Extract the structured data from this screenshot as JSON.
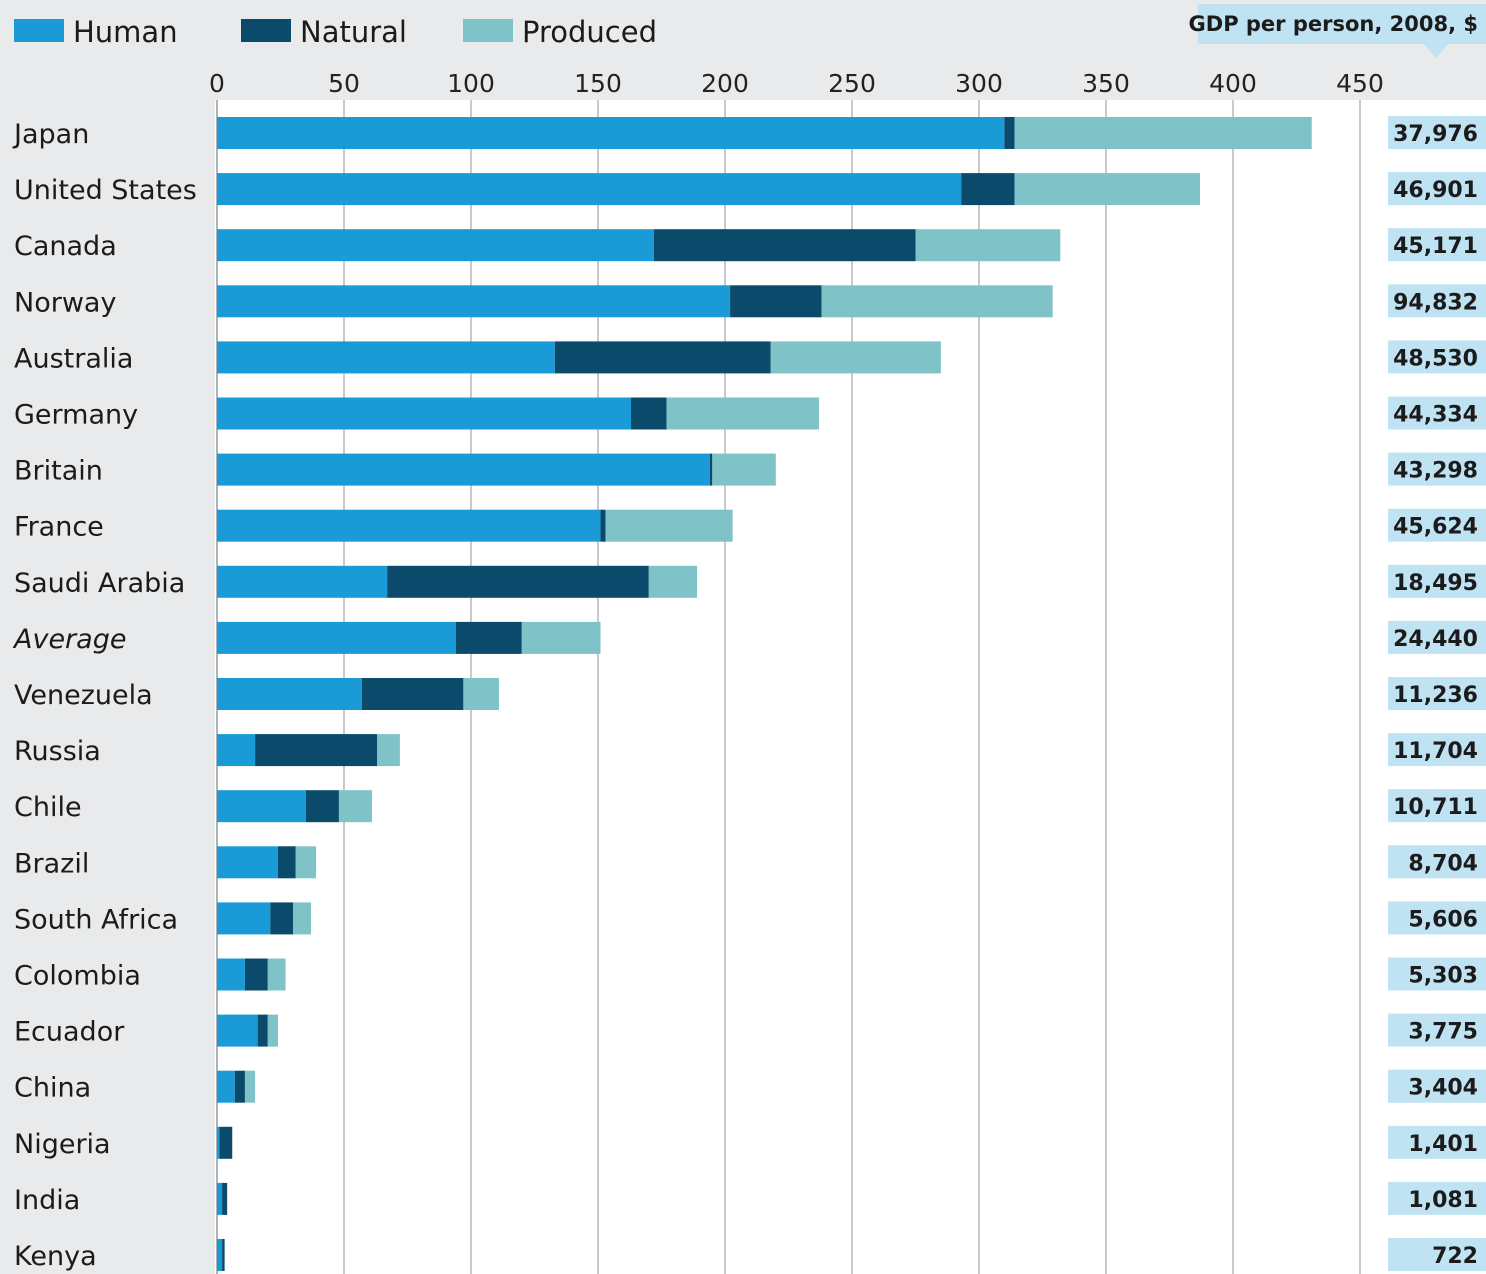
{
  "chart_data": {
    "type": "bar",
    "orientation": "horizontal",
    "stacked": true,
    "legend_placement": "top-left",
    "grid": true,
    "xlim": [
      0,
      450
    ],
    "xticks": [
      "0",
      "50",
      "100",
      "150",
      "200",
      "250",
      "300",
      "350",
      "400",
      "450"
    ],
    "categories": [
      "Japan",
      "United States",
      "Canada",
      "Norway",
      "Australia",
      "Germany",
      "Britain",
      "France",
      "Saudi Arabia",
      "Average",
      "Venezuela",
      "Russia",
      "Chile",
      "Brazil",
      "South Africa",
      "Colombia",
      "Ecuador",
      "China",
      "Nigeria",
      "India",
      "Kenya"
    ],
    "italic_categories": [
      "Average"
    ],
    "series": [
      {
        "name": "Human",
        "color": "#1a9bd7",
        "values": [
          310,
          293,
          172,
          202,
          133,
          163,
          194,
          151,
          67,
          94,
          57,
          15,
          35,
          24,
          21,
          11,
          16,
          7,
          1,
          2,
          2
        ]
      },
      {
        "name": "Natural",
        "color": "#0b4a6a",
        "values": [
          4,
          21,
          103,
          36,
          85,
          14,
          1,
          2,
          103,
          26,
          40,
          48,
          13,
          7,
          9,
          9,
          4,
          4,
          5,
          2,
          1
        ]
      },
      {
        "name": "Produced",
        "color": "#7fc3c8",
        "values": [
          117,
          73,
          57,
          91,
          67,
          60,
          25,
          50,
          19,
          31,
          14,
          9,
          13,
          8,
          7,
          7,
          4,
          4,
          0,
          0,
          0
        ]
      }
    ],
    "side_table": {
      "title": "GDP per person, 2008, $",
      "values": [
        "37,976",
        "46,901",
        "45,171",
        "94,832",
        "48,530",
        "44,334",
        "43,298",
        "45,624",
        "18,495",
        "24,440",
        "11,236",
        "11,704",
        "10,711",
        "8,704",
        "5,606",
        "5,303",
        "3,775",
        "3,404",
        "1,401",
        "1,081",
        "722"
      ]
    }
  },
  "colors": {
    "background": "#e9eaeb",
    "plot_background": "#ffffff",
    "gridline": "#aeb3b7",
    "side_highlight": "#bfe3f3"
  }
}
